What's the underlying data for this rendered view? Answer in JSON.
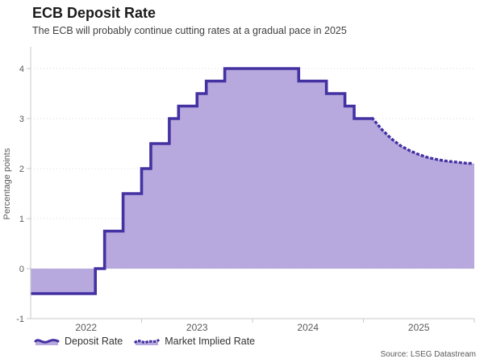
{
  "header": {
    "title": "ECB Deposit Rate",
    "subtitle": "The ECB will probably continue cutting rates at a gradual pace in 2025"
  },
  "legend": {
    "items": [
      {
        "label": "Deposit Rate",
        "line_style": "solid"
      },
      {
        "label": "Market Implied Rate",
        "line_style": "dotted"
      }
    ]
  },
  "footer": {
    "source": "Source: LSEG Datastream"
  },
  "chart_data": {
    "type": "area",
    "title": "ECB Deposit Rate",
    "subtitle": "The ECB will probably continue cutting rates at a gradual pace in 2025",
    "xlabel": "",
    "ylabel": "Percentage points",
    "ylim": [
      -1,
      4
    ],
    "yticks": [
      -1,
      0,
      1,
      2,
      3,
      4
    ],
    "x_range": [
      "2022-01",
      "2026-01"
    ],
    "x_year_ticks": [
      2023,
      2024,
      2025,
      2026
    ],
    "x_year_labels": [
      "2022",
      "2023",
      "2024",
      "2025"
    ],
    "grid": "horizontal-dotted",
    "legend_position": "bottom-left",
    "area_threshold": 0,
    "colors": {
      "line": "#4431A2",
      "fill": "#B7A9DE",
      "axis": "#c9c9c9",
      "grid": "#dcdcdc",
      "tick_text": "#5a5a5a"
    },
    "series": [
      {
        "name": "Deposit Rate",
        "style": "step-area",
        "line": "solid",
        "extend_to": "2025-02",
        "points": [
          [
            "2022-01",
            -0.5
          ],
          [
            "2022-08",
            0.0
          ],
          [
            "2022-09",
            0.75
          ],
          [
            "2022-11",
            1.5
          ],
          [
            "2023-01",
            2.0
          ],
          [
            "2023-02",
            2.5
          ],
          [
            "2023-04",
            3.0
          ],
          [
            "2023-05",
            3.25
          ],
          [
            "2023-07",
            3.5
          ],
          [
            "2023-08",
            3.75
          ],
          [
            "2023-10",
            4.0
          ],
          [
            "2024-06",
            3.75
          ],
          [
            "2024-09",
            3.5
          ],
          [
            "2024-11",
            3.25
          ],
          [
            "2024-12",
            3.0
          ]
        ]
      },
      {
        "name": "Market Implied Rate",
        "style": "line",
        "line": "dotted",
        "points": [
          [
            "2025-02",
            3.0
          ],
          [
            "2025-03",
            2.78
          ],
          [
            "2025-04",
            2.6
          ],
          [
            "2025-05",
            2.46
          ],
          [
            "2025-06",
            2.36
          ],
          [
            "2025-07",
            2.28
          ],
          [
            "2025-08",
            2.22
          ],
          [
            "2025-09",
            2.18
          ],
          [
            "2025-10",
            2.15
          ],
          [
            "2025-11",
            2.13
          ],
          [
            "2025-12",
            2.11
          ],
          [
            "2026-01",
            2.1
          ]
        ]
      }
    ]
  }
}
